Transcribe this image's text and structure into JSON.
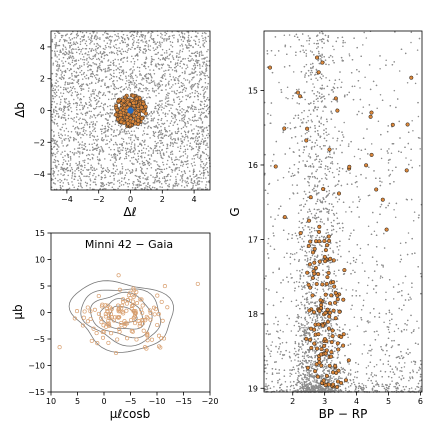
{
  "chart_data": [
    {
      "type": "scatter",
      "title": "",
      "xlabel": "Δℓ",
      "ylabel": "Δb",
      "xlim": [
        -5,
        5
      ],
      "ylim": [
        -5,
        5
      ],
      "xticks": [
        "−4",
        "−2",
        "0",
        "2",
        "4"
      ],
      "xtick_values": [
        -4,
        -2,
        0,
        2,
        4
      ],
      "yticks": [
        "−4",
        "−2",
        "0",
        "2",
        "4"
      ],
      "ytick_values": [
        -4,
        -2,
        0,
        2,
        4
      ],
      "field_color": "#8c8c8c",
      "member_color": "#d9863a",
      "center_color": "#2b6fc2",
      "member_radius": 1.0,
      "center": [
        0,
        0
      ],
      "grid": false
    },
    {
      "type": "scatter",
      "title": "Minni 42  −  Gaia",
      "xlabel": "μℓcosb",
      "ylabel": "μb",
      "xlim": [
        10,
        -20
      ],
      "ylim": [
        -15,
        15
      ],
      "xticks": [
        "10",
        "5",
        "0",
        "−5",
        "−10",
        "−15",
        "−20"
      ],
      "xtick_values": [
        10,
        5,
        0,
        -5,
        -10,
        -15,
        -20
      ],
      "yticks": [
        "−15",
        "−10",
        "−5",
        "0",
        "5",
        "10",
        "15"
      ],
      "ytick_values": [
        -15,
        -10,
        -5,
        0,
        5,
        10,
        15
      ],
      "contour_center": [
        -3.5,
        -0.5
      ],
      "contour_radii": [
        [
          9.5,
          6.5
        ],
        [
          7.5,
          5.2
        ],
        [
          5.8,
          4.0
        ],
        [
          4.0,
          2.8
        ],
        [
          2.5,
          1.6
        ]
      ],
      "contour_color": "#7a7a7a",
      "member_color": "#d9a070",
      "grid": false
    },
    {
      "type": "scatter",
      "title": "",
      "xlabel": "BP − RP",
      "ylabel": "G",
      "xlim": [
        1.1,
        6.05
      ],
      "ylim": [
        19.05,
        14.2
      ],
      "xticks": [
        "2",
        "3",
        "4",
        "5",
        "6"
      ],
      "xtick_values": [
        2,
        3,
        4,
        5,
        6
      ],
      "yticks": [
        "15",
        "16",
        "17",
        "18",
        "19"
      ],
      "ytick_values": [
        15,
        16,
        17,
        18,
        19
      ],
      "field_color": "#8c8c8c",
      "member_color": "#d9863a",
      "grid": false
    }
  ]
}
